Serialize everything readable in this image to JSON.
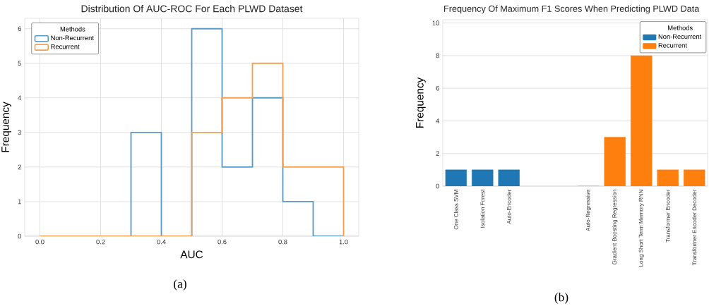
{
  "chart_data": [
    {
      "type": "histogram",
      "title": "Distribution Of AUC-ROC For Each PLWD Dataset",
      "xlabel": "AUC",
      "ylabel": "Frequency",
      "bins": [
        0.0,
        0.1,
        0.2,
        0.3,
        0.4,
        0.5,
        0.6,
        0.7,
        0.8,
        0.9,
        1.0
      ],
      "series": [
        {
          "name": "Non-Recurrent",
          "color": "#5b9bc8",
          "values": [
            0,
            0,
            0,
            3,
            0,
            6,
            2,
            4,
            1,
            0
          ]
        },
        {
          "name": "Recurrent",
          "color": "#f9a050",
          "values": [
            0,
            0,
            0,
            0,
            0,
            3,
            4,
            5,
            2,
            2
          ]
        }
      ],
      "xlim": [
        -0.05,
        1.05
      ],
      "ylim": [
        0,
        6.3
      ],
      "xticks": [
        {
          "value": 0,
          "label": "0.0"
        },
        0.2,
        0.4,
        0.6,
        0.8,
        {
          "value": 1,
          "label": "1.0"
        }
      ],
      "yticks": [
        0,
        1,
        2,
        3,
        4,
        5,
        6
      ],
      "grid": true,
      "legend": "top left",
      "legend_title": "Methods",
      "annotations": [
        "(a)"
      ]
    },
    {
      "type": "bar",
      "title": "Frequency Of Maximum F1 Scores When Predicting PLWD Data",
      "ylabel": "Frequency",
      "categories": [
        "One Class SVM",
        "Isolation Forest",
        "Auto-Encoder",
        null,
        null,
        "Auto-Regressive",
        "Gradient Boosting Regression",
        "Long Short Term Memory RNN",
        "Transformer Encoder",
        "Transformer Encoder Decoder"
      ],
      "series": [
        {
          "name": "Non-Recurrent",
          "color": "#1f77b4",
          "values": [
            1,
            1,
            1,
            null,
            null,
            null,
            null,
            null,
            null,
            null
          ]
        },
        {
          "name": "Recurrent",
          "color": "#ff7f0e",
          "values": [
            null,
            null,
            null,
            null,
            null,
            0,
            3,
            8,
            1,
            1
          ]
        }
      ],
      "ylim": [
        0,
        10.2
      ],
      "yticks": [
        0,
        2,
        4,
        6,
        8,
        10
      ],
      "grid": "y",
      "legend": "top right",
      "legend_title": "Methods",
      "annotations": [
        "(b)"
      ]
    }
  ]
}
